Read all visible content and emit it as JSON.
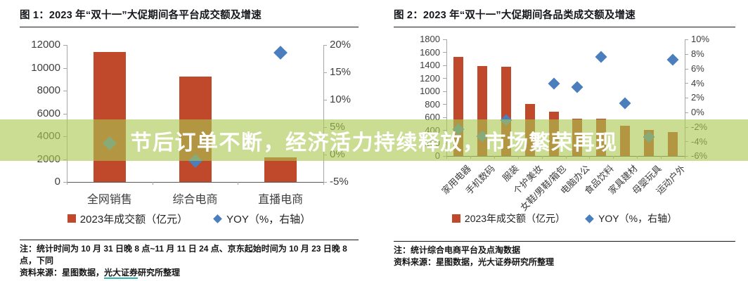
{
  "banner": {
    "text": "节后订单不断，经济活力持续释放，市场繁荣再现"
  },
  "chart_data": [
    {
      "type": "bar",
      "title": "图 1：2023 年“双十一”大促期间各平台成交额及增速",
      "categories": [
        "全网销售",
        "综合电商",
        "直播电商"
      ],
      "series": [
        {
          "name": "2023年成交额（亿元）",
          "type": "bar",
          "axis": "left",
          "values": [
            11386,
            9235,
            2151
          ]
        },
        {
          "name": "YOY（%，右轴）",
          "type": "scatter",
          "axis": "right",
          "values": [
            2.1,
            -1.1,
            18.6
          ]
        }
      ],
      "left_axis": {
        "min": 0,
        "max": 12000,
        "step": 2000
      },
      "right_axis": {
        "min": -5,
        "max": 20,
        "step": 5,
        "suffix": "%"
      },
      "grid": false,
      "legend_position": "bottom"
    },
    {
      "type": "bar",
      "title": "图 2：2023 年“双十一”大促期间各品类成交额及增速",
      "categories": [
        "家用电器",
        "手机数码",
        "服装",
        "个护美妆",
        "女鞋/男鞋/箱包",
        "电脑办公",
        "食品饮料",
        "家具建材",
        "母婴玩具",
        "运动户外"
      ],
      "series": [
        {
          "name": "2023年成交额（亿元）",
          "type": "bar",
          "axis": "left",
          "values": [
            1529,
            1388,
            1376,
            803,
            687,
            575,
            580,
            466,
            401,
            369
          ]
        },
        {
          "name": "YOY（%，右轴）",
          "type": "scatter",
          "axis": "right",
          "values": [
            -2.3,
            -3.3,
            -1.1,
            null,
            3.9,
            3.4,
            7.6,
            1.2,
            -3.4,
            7.2
          ]
        }
      ],
      "left_axis": {
        "min": 0,
        "max": 1800,
        "step": 200
      },
      "right_axis": {
        "min": -6,
        "max": 10,
        "step": 2,
        "suffix": "%"
      },
      "grid": false,
      "legend_position": "bottom"
    }
  ],
  "figure1_notes": {
    "note": "注：统计时间为 10 月 31 日晚 8 点~11 月 11 日 24 点、京东起始时间为 10 月 23 日晚 8 点，下同",
    "source_prefix": "资料来源：星图数据，",
    "source_link": "光大证券",
    "source_suffix": "研究所整理"
  },
  "figure2_notes": {
    "note": "注：统计综合电商平台及点淘数据",
    "source": "资料来源：星图数据，光大证券研究所整理"
  },
  "colors": {
    "bar_red": "#c0492b",
    "marker_blue": "#4a7ebc",
    "banner_green": "#abc750",
    "link_teal": "#2fb8ad",
    "axis_gray": "#a6a6a6",
    "baseline_gray": "#5a5a5a",
    "label_gray": "#3d3d3d"
  }
}
